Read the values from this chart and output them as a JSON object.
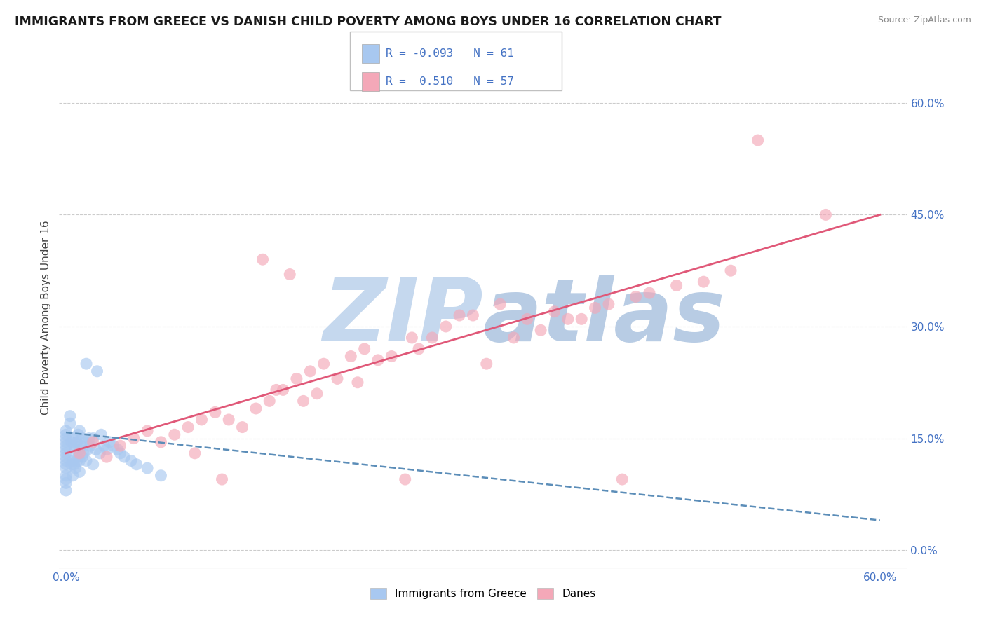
{
  "title": "IMMIGRANTS FROM GREECE VS DANISH CHILD POVERTY AMONG BOYS UNDER 16 CORRELATION CHART",
  "source": "Source: ZipAtlas.com",
  "ylabel": "Child Poverty Among Boys Under 16",
  "ytick_labels": [
    "0.0%",
    "15.0%",
    "30.0%",
    "45.0%",
    "60.0%"
  ],
  "ytick_values": [
    0.0,
    0.15,
    0.3,
    0.45,
    0.6
  ],
  "xtick_labels": [
    "0.0%",
    "60.0%"
  ],
  "xtick_values": [
    0.0,
    0.6
  ],
  "xlim": [
    -0.005,
    0.62
  ],
  "ylim": [
    -0.025,
    0.65
  ],
  "legend_r1": "-0.093",
  "legend_n1": "61",
  "legend_r2": "0.510",
  "legend_n2": "57",
  "legend_label1": "Immigrants from Greece",
  "legend_label2": "Danes",
  "blue_color": "#A8C8F0",
  "pink_color": "#F4A8B8",
  "blue_line_color": "#5B8DB8",
  "pink_line_color": "#E05878",
  "tick_label_color": "#4472C4",
  "title_color": "#1A1A1A",
  "source_color": "#888888",
  "wm_zip_color": "#C5D8EE",
  "wm_atlas_color": "#B8CCE4",
  "bg_color": "#FFFFFF",
  "grid_color": "#CCCCCC",
  "blue_scatter_x": [
    0.0,
    0.0,
    0.0,
    0.0,
    0.0,
    0.0,
    0.0,
    0.0,
    0.0,
    0.0,
    0.0,
    0.0,
    0.0,
    0.0,
    0.0,
    0.003,
    0.003,
    0.004,
    0.004,
    0.005,
    0.005,
    0.005,
    0.006,
    0.006,
    0.007,
    0.007,
    0.008,
    0.008,
    0.009,
    0.009,
    0.01,
    0.01,
    0.01,
    0.01,
    0.011,
    0.012,
    0.012,
    0.013,
    0.014,
    0.015,
    0.015,
    0.016,
    0.017,
    0.018,
    0.02,
    0.02,
    0.022,
    0.023,
    0.025,
    0.026,
    0.028,
    0.03,
    0.032,
    0.035,
    0.038,
    0.04,
    0.043,
    0.048,
    0.052,
    0.06,
    0.07
  ],
  "blue_scatter_y": [
    0.08,
    0.09,
    0.095,
    0.1,
    0.11,
    0.115,
    0.12,
    0.125,
    0.13,
    0.135,
    0.14,
    0.145,
    0.15,
    0.155,
    0.16,
    0.17,
    0.18,
    0.115,
    0.145,
    0.1,
    0.12,
    0.15,
    0.115,
    0.14,
    0.11,
    0.135,
    0.12,
    0.145,
    0.125,
    0.155,
    0.105,
    0.12,
    0.135,
    0.16,
    0.14,
    0.125,
    0.15,
    0.13,
    0.145,
    0.12,
    0.25,
    0.135,
    0.15,
    0.14,
    0.115,
    0.15,
    0.135,
    0.24,
    0.13,
    0.155,
    0.14,
    0.135,
    0.145,
    0.14,
    0.135,
    0.13,
    0.125,
    0.12,
    0.115,
    0.11,
    0.1
  ],
  "pink_scatter_x": [
    0.01,
    0.02,
    0.03,
    0.04,
    0.05,
    0.06,
    0.07,
    0.08,
    0.09,
    0.095,
    0.1,
    0.11,
    0.115,
    0.12,
    0.13,
    0.14,
    0.145,
    0.15,
    0.155,
    0.16,
    0.165,
    0.17,
    0.175,
    0.18,
    0.185,
    0.19,
    0.2,
    0.21,
    0.215,
    0.22,
    0.23,
    0.24,
    0.25,
    0.255,
    0.26,
    0.27,
    0.28,
    0.29,
    0.3,
    0.31,
    0.32,
    0.33,
    0.34,
    0.35,
    0.36,
    0.37,
    0.38,
    0.39,
    0.4,
    0.41,
    0.42,
    0.43,
    0.45,
    0.47,
    0.49,
    0.51,
    0.56
  ],
  "pink_scatter_y": [
    0.13,
    0.145,
    0.125,
    0.14,
    0.15,
    0.16,
    0.145,
    0.155,
    0.165,
    0.13,
    0.175,
    0.185,
    0.095,
    0.175,
    0.165,
    0.19,
    0.39,
    0.2,
    0.215,
    0.215,
    0.37,
    0.23,
    0.2,
    0.24,
    0.21,
    0.25,
    0.23,
    0.26,
    0.225,
    0.27,
    0.255,
    0.26,
    0.095,
    0.285,
    0.27,
    0.285,
    0.3,
    0.315,
    0.315,
    0.25,
    0.33,
    0.285,
    0.31,
    0.295,
    0.32,
    0.31,
    0.31,
    0.325,
    0.33,
    0.095,
    0.34,
    0.345,
    0.355,
    0.36,
    0.375,
    0.55,
    0.45
  ],
  "blue_line_x": [
    0.0,
    0.6
  ],
  "blue_line_y": [
    0.158,
    0.04
  ],
  "pink_line_x": [
    0.0,
    0.6
  ],
  "pink_line_y": [
    0.13,
    0.45
  ]
}
